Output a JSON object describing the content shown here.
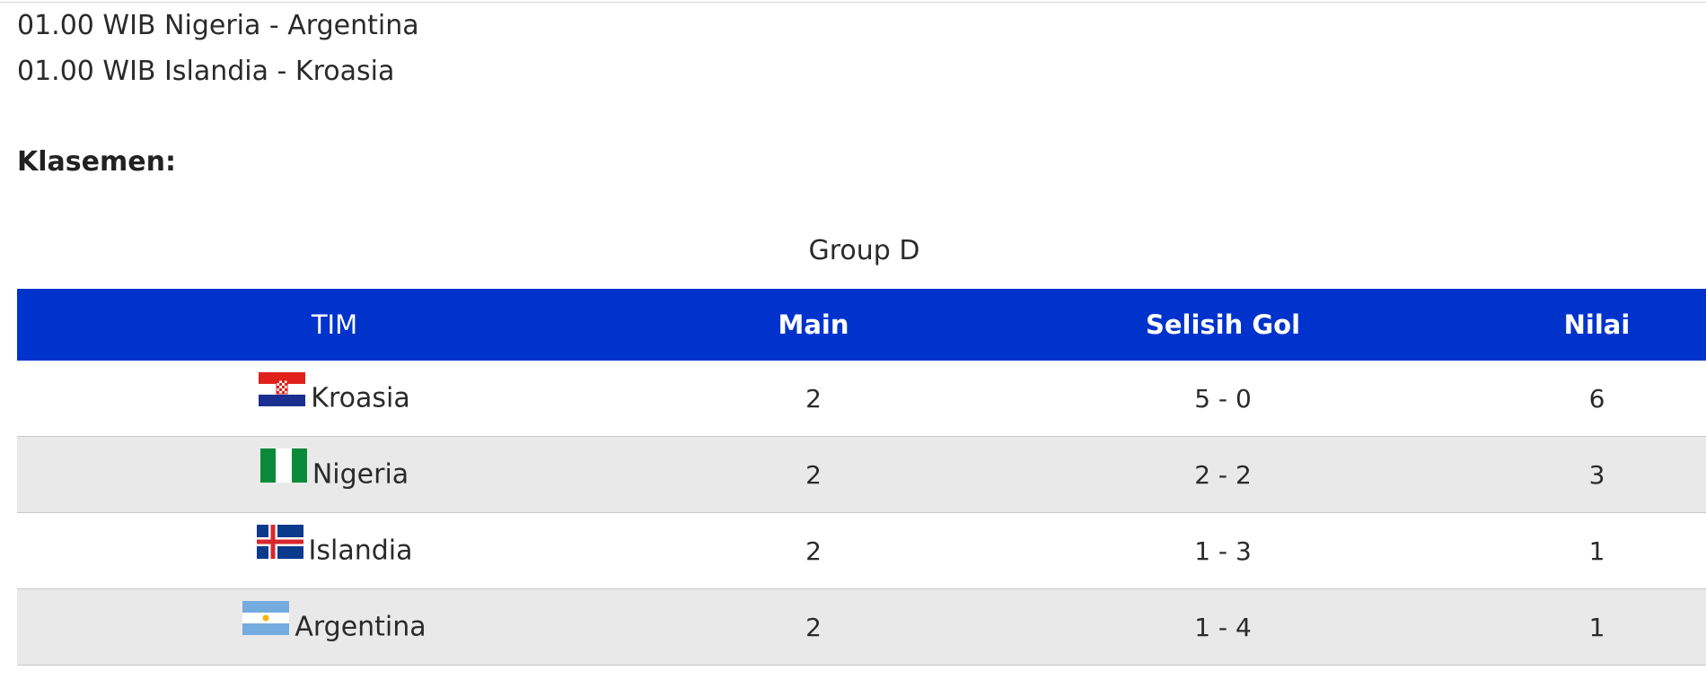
{
  "schedule": [
    {
      "text": "01.00 WIB Nigeria - Argentina"
    },
    {
      "text": "01.00 WIB Islandia - Kroasia"
    }
  ],
  "section_title": "Klasemen:",
  "table": {
    "caption": "Group D",
    "headers": {
      "team": "TIM",
      "played": "Main",
      "goal_difference": "Selisih Gol",
      "points": "Nilai"
    },
    "header_color": "#0033cc",
    "rows": [
      {
        "team": "Kroasia",
        "flag": "croatia-flag-icon",
        "played": "2",
        "goal_difference": "5 - 0",
        "points": "6"
      },
      {
        "team": "Nigeria",
        "flag": "nigeria-flag-icon",
        "played": "2",
        "goal_difference": "2 - 2",
        "points": "3"
      },
      {
        "team": "Islandia",
        "flag": "iceland-flag-icon",
        "played": "2",
        "goal_difference": "1 - 3",
        "points": "1"
      },
      {
        "team": "Argentina",
        "flag": "argentina-flag-icon",
        "played": "2",
        "goal_difference": "1 - 4",
        "points": "1"
      }
    ]
  }
}
